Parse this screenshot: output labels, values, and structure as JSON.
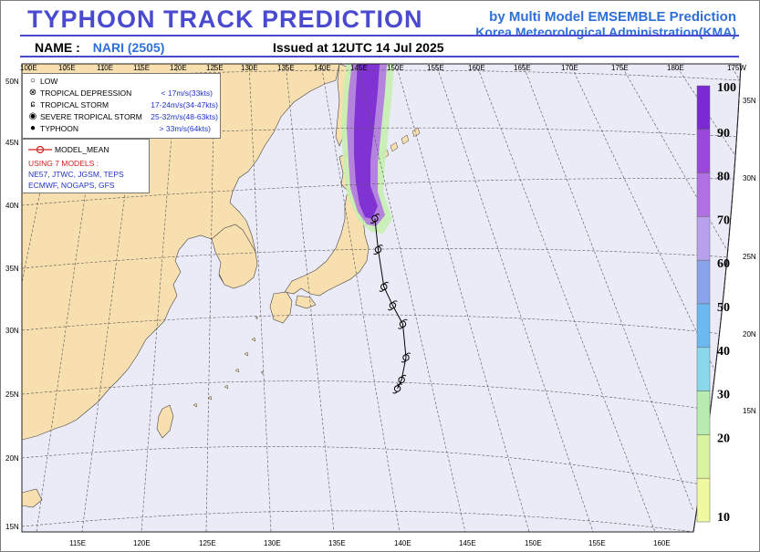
{
  "header": {
    "title": "TYPHOON  TRACK  PREDICTION",
    "org_line1": "by Multi Model EMSEMBLE Prediction",
    "org_line2": "Korea Meteorological Administration(KMA)",
    "name_label": "NAME :",
    "name_value": "NARI (2505)",
    "issued": "Issued at  12UTC 14 Jul 2025"
  },
  "legend": {
    "items": [
      {
        "symbol": "○",
        "label": "LOW",
        "speed": ""
      },
      {
        "symbol": "⊗",
        "label": "TROPICAL DEPRESSION",
        "speed": "< 17m/s(33kts)"
      },
      {
        "symbol": "ɕ",
        "label": "TROPICAL STORM",
        "speed": "17-24m/s(34-47kts)"
      },
      {
        "symbol": "◉",
        "label": "SEVERE TROPICAL STORM",
        "speed": "25-32m/s(48-63kts)"
      },
      {
        "symbol": "●",
        "label": "TYPHOON",
        "speed": "> 33m/s(64kts)"
      }
    ],
    "model_mean": "MODEL_MEAN",
    "models_title": "USING 7 MODELS :",
    "models_line1": "NE57, JTWC, JGSM, TEPS",
    "models_line2": "ECMWF, NOGAPS, GFS"
  },
  "map": {
    "top_lon_labels": [
      "100E",
      "105E",
      "110E",
      "115E",
      "120E",
      "125E",
      "130E",
      "135E",
      "140E",
      "145E",
      "150E",
      "155E",
      "160E",
      "165E",
      "170E",
      "175E",
      "180E",
      "175W"
    ],
    "bottom_lon_labels": [
      "115E",
      "120E",
      "125E",
      "130E",
      "135E",
      "140E",
      "145E",
      "150E",
      "155E",
      "160E"
    ],
    "left_lat_labels": [
      "50N",
      "45N",
      "40N",
      "35N",
      "30N",
      "25N",
      "20N",
      "15N"
    ],
    "right_lat_labels": [
      "35N",
      "30N",
      "25N",
      "20N",
      "15N"
    ],
    "colors": {
      "land": "#f7dfb0",
      "ocean": "#ebebf8",
      "grid": "#555555",
      "track": "#000000"
    }
  },
  "track_points": [
    {
      "lat": 25.3,
      "lon": 140.0
    },
    {
      "lat": 26.0,
      "lon": 140.3
    },
    {
      "lat": 27.8,
      "lon": 140.6
    },
    {
      "lat": 30.5,
      "lon": 140.3
    },
    {
      "lat": 32.0,
      "lon": 139.5
    },
    {
      "lat": 33.5,
      "lon": 138.8
    },
    {
      "lat": 36.5,
      "lon": 138.3
    },
    {
      "lat": 39.0,
      "lon": 138.0
    }
  ],
  "colorbar": {
    "labels": [
      "100",
      "90",
      "80",
      "70",
      "60",
      "50",
      "40",
      "30",
      "20",
      "10"
    ],
    "colors": [
      "#7a2ad0",
      "#9a48dc",
      "#b070e4",
      "#b8a0ec",
      "#8aa4ec",
      "#6cb8f0",
      "#8ad8ea",
      "#b8ecb0",
      "#d8f4a0",
      "#f0f8a0"
    ]
  }
}
